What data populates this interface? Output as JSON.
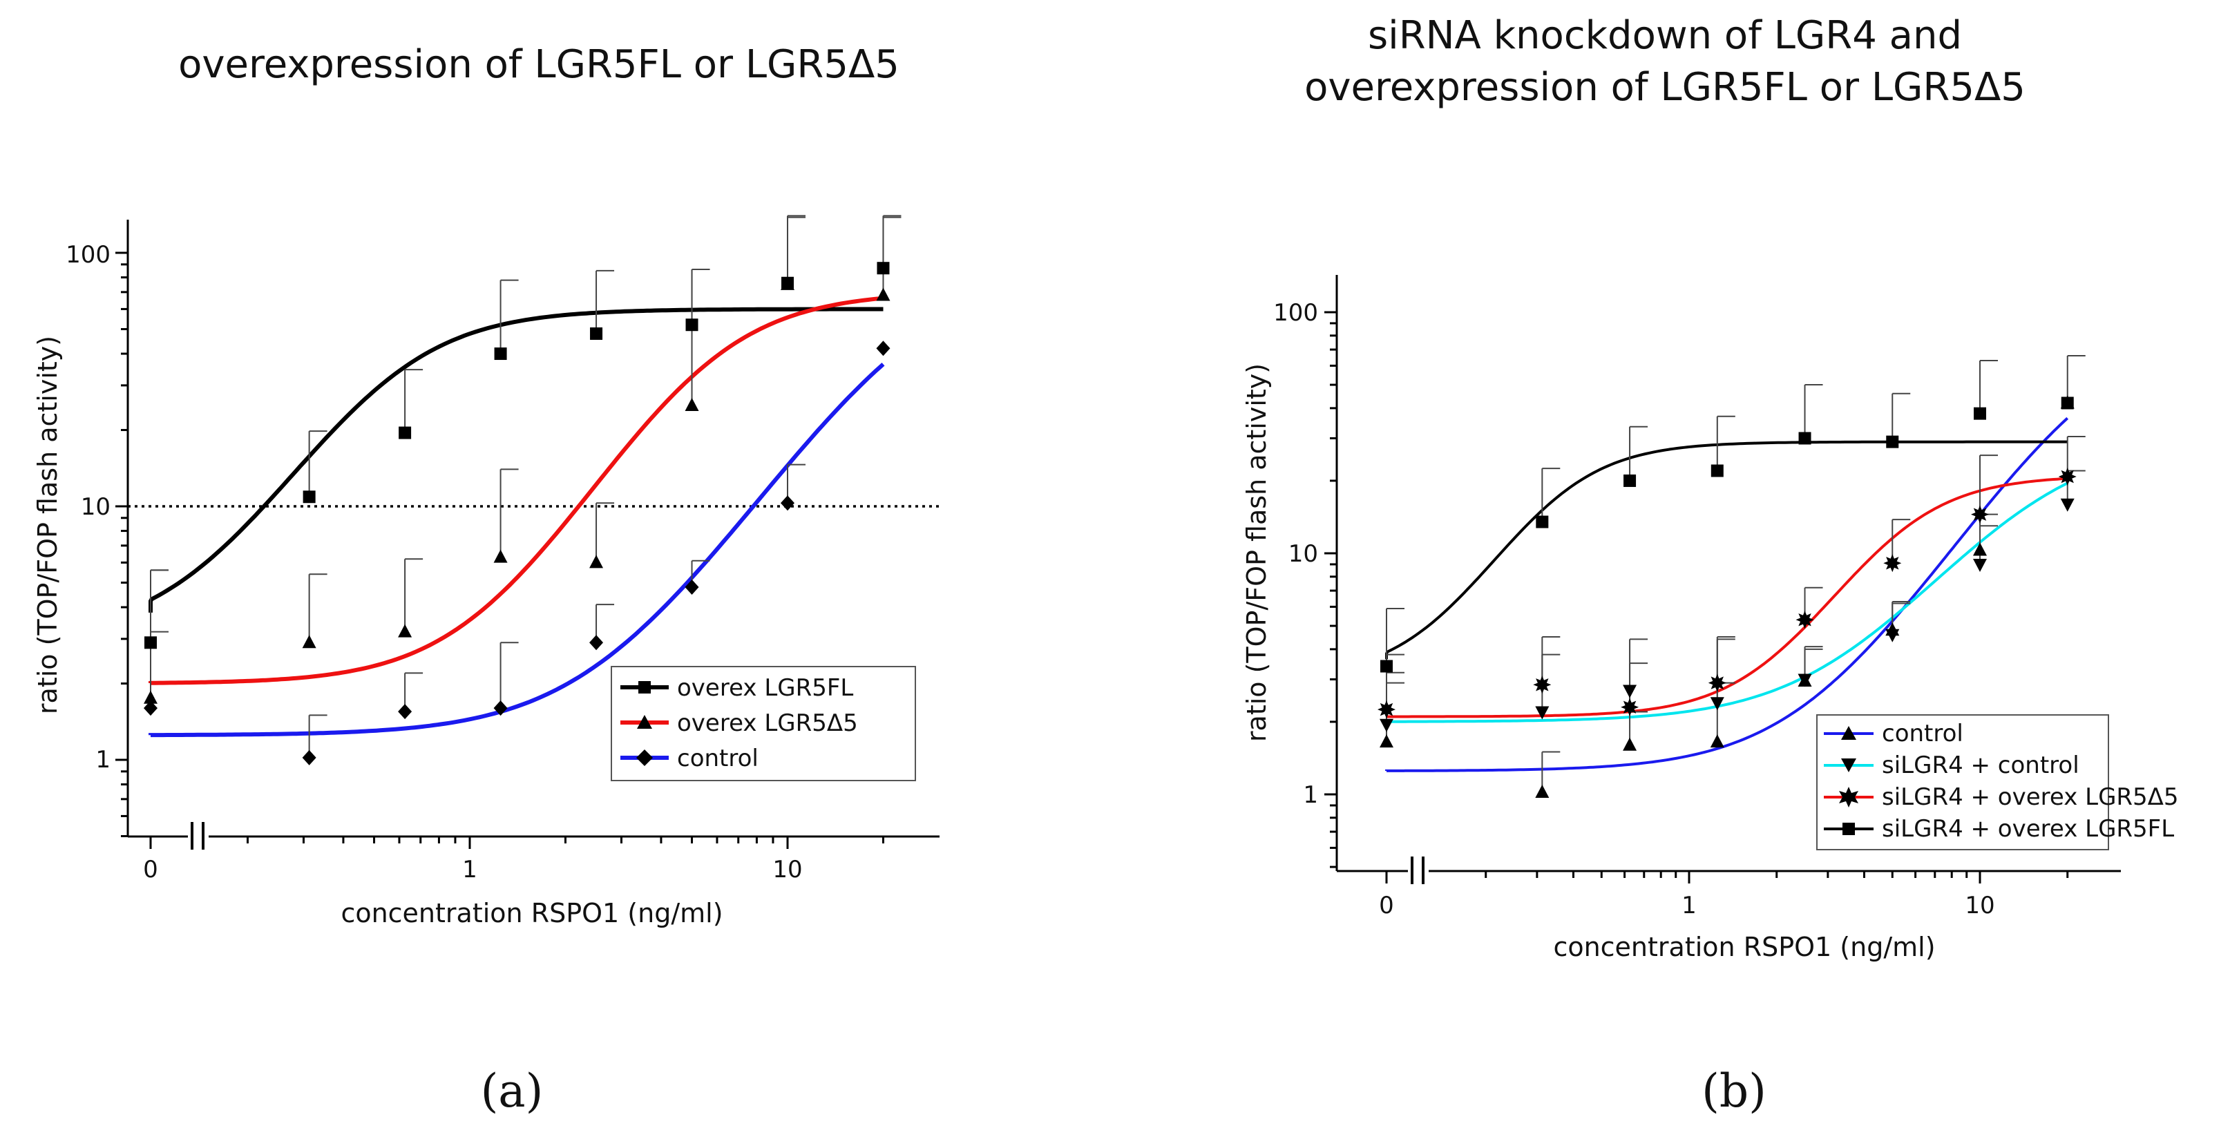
{
  "chart_data": [
    {
      "panel": "(a)",
      "type": "line",
      "title": "overexpression of LGR5FL or LGR5Δ5",
      "xlabel": "concentration  RSPO1 (ng/ml)",
      "ylabel": "ratio (TOP/FOP flash activity)",
      "x_scale": "log with axis break",
      "x_tick_labels": [
        "0",
        "1",
        "10"
      ],
      "y_scale": "log",
      "ylim": [
        0.5,
        150
      ],
      "y_tick_labels": [
        "1",
        "10",
        "100"
      ],
      "reference_line": {
        "y": 10,
        "style": "dotted"
      },
      "legend_position": "bottom-right",
      "x": [
        0,
        0.3125,
        0.625,
        1.25,
        2.5,
        5,
        10,
        20
      ],
      "series": [
        {
          "name": "overex LGR5FL",
          "color": "#000000",
          "marker": "square",
          "values": [
            2.9,
            10.9,
            19.5,
            40,
            48,
            52,
            76,
            87
          ],
          "error_upper": [
            5.6,
            19.8,
            34.6,
            78,
            85,
            86,
            138,
            138
          ],
          "fit": {
            "bottom": 3.0,
            "top": 60,
            "ec50": 0.55,
            "hill": 2.2
          }
        },
        {
          "name": "overex LGR5Δ5",
          "color": "#ee1111",
          "marker": "triangle-up",
          "values": [
            1.75,
            2.9,
            3.2,
            6.3,
            6.0,
            25,
            75,
            68
          ],
          "error_upper": [
            5.6,
            5.4,
            6.2,
            14,
            10.3,
            86,
            140,
            140
          ],
          "fit": {
            "bottom": 2.0,
            "top": 70,
            "ec50": 5.5,
            "hill": 2.2
          }
        },
        {
          "name": "control",
          "color": "#1a1aee",
          "marker": "diamond",
          "values": [
            1.6,
            1.02,
            1.55,
            1.6,
            2.9,
            4.8,
            10.3,
            42
          ],
          "error_upper": [
            3.2,
            1.5,
            2.2,
            2.9,
            4.1,
            6.1,
            14.6,
            42
          ],
          "fit": {
            "bottom": 1.25,
            "top": 90,
            "ec50": 25,
            "hill": 1.9
          }
        }
      ]
    },
    {
      "panel": "(b)",
      "type": "line",
      "title": "siRNA knockdown of LGR4 and\noverexpression of LGR5FL or LGR5Δ5",
      "xlabel": "concentration  RSPO1 (ng/ml)",
      "ylabel": "ratio (TOP/FOP flash activity)",
      "x_scale": "log with axis break",
      "x_tick_labels": [
        "0",
        "1",
        "10"
      ],
      "y_scale": "log",
      "ylim": [
        0.5,
        150
      ],
      "y_tick_labels": [
        "1",
        "10",
        "100"
      ],
      "legend_position": "bottom-right",
      "x": [
        0,
        0.3125,
        0.625,
        1.25,
        2.5,
        5,
        10,
        20
      ],
      "series": [
        {
          "name": "control",
          "color": "#1a1aee",
          "marker": "triangle-up",
          "values": [
            1.65,
            1.02,
            1.6,
            1.65,
            2.95,
            4.8,
            10.3,
            42
          ],
          "error_upper": [
            2.9,
            1.5,
            2.2,
            2.9,
            4.1,
            6.2,
            14.5,
            42
          ],
          "fit": {
            "bottom": 1.25,
            "top": 90,
            "ec50": 25,
            "hill": 1.9
          }
        },
        {
          "name": "siLGR4 + control",
          "color": "#00e5ee",
          "marker": "triangle-down",
          "values": [
            1.95,
            2.2,
            2.7,
            2.4,
            3.0,
            4.6,
            9.0,
            16.0
          ],
          "error_upper": [
            3.2,
            3.8,
            4.4,
            4.5,
            4.0,
            6.3,
            13.0,
            22.0
          ],
          "fit": {
            "bottom": 2.0,
            "top": 30,
            "ec50": 15,
            "hill": 1.8
          }
        },
        {
          "name": "siLGR4 + overex LGR5Δ5",
          "color": "#ee1111",
          "marker": "star",
          "values": [
            2.25,
            2.85,
            2.3,
            2.9,
            5.3,
            9.1,
            14.5,
            20.8
          ],
          "error_upper": [
            3.8,
            4.5,
            3.5,
            4.4,
            7.2,
            13.8,
            25.5,
            30.5
          ],
          "fit": {
            "bottom": 2.1,
            "top": 21,
            "ec50": 5.0,
            "hill": 2.5
          }
        },
        {
          "name": "siLGR4 + overex LGR5FL",
          "color": "#000000",
          "marker": "square",
          "values": [
            3.4,
            13.5,
            20,
            22,
            30,
            29,
            38,
            42
          ],
          "error_upper": [
            5.9,
            22.5,
            33.5,
            37,
            50,
            46,
            63,
            66
          ],
          "fit": {
            "bottom": 3.0,
            "top": 29,
            "ec50": 0.33,
            "hill": 2.6
          }
        }
      ]
    }
  ]
}
